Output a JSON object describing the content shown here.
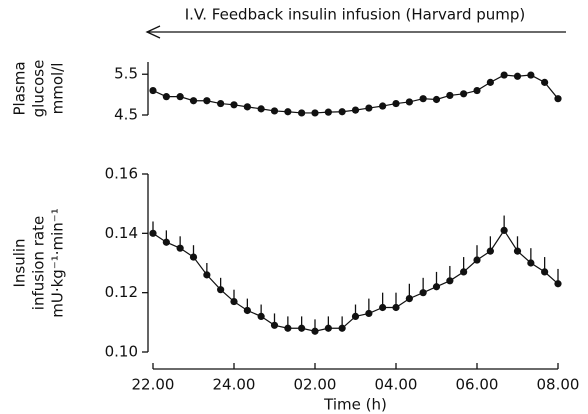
{
  "chart_data": [
    {
      "type": "line",
      "annotation": "I.V. Feedback insulin infusion (Harvard pump)",
      "ylabel": [
        "Plasma",
        "glucose",
        "mmol/l"
      ],
      "x": [
        22,
        22.33,
        22.67,
        23,
        23.33,
        23.67,
        24,
        24.33,
        24.67,
        25,
        25.33,
        25.67,
        26,
        26.33,
        26.67,
        27,
        27.33,
        27.67,
        28,
        28.33,
        28.67,
        29,
        29.33,
        29.67,
        30,
        30.33,
        30.67,
        31,
        31.33,
        31.67,
        32
      ],
      "series": [
        {
          "name": "Plasma glucose",
          "color": "#111111",
          "values": [
            5.1,
            4.95,
            4.95,
            4.85,
            4.85,
            4.78,
            4.75,
            4.7,
            4.65,
            4.6,
            4.58,
            4.55,
            4.55,
            4.57,
            4.58,
            4.62,
            4.67,
            4.72,
            4.78,
            4.82,
            4.9,
            4.88,
            4.98,
            5.02,
            5.1,
            5.3,
            5.48,
            5.45,
            5.48,
            5.3,
            4.9
          ]
        }
      ],
      "xlim": [
        22,
        32
      ],
      "ylim": [
        4.5,
        5.8
      ],
      "yticks": [
        4.5,
        5.5
      ]
    },
    {
      "type": "line",
      "ylabel": [
        "Insulin",
        "infusion rate",
        "mU·kg⁻¹·min⁻¹"
      ],
      "xlabel": "Time (h)",
      "x": [
        22,
        22.33,
        22.67,
        23,
        23.33,
        23.67,
        24,
        24.33,
        24.67,
        25,
        25.33,
        25.67,
        26,
        26.33,
        26.67,
        27,
        27.33,
        27.67,
        28,
        28.33,
        28.67,
        29,
        29.33,
        29.67,
        30,
        30.33,
        30.67,
        31,
        31.33,
        31.67,
        32
      ],
      "series": [
        {
          "name": "Insulin infusion rate",
          "color": "#111111",
          "values": [
            0.14,
            0.137,
            0.135,
            0.132,
            0.126,
            0.121,
            0.117,
            0.114,
            0.112,
            0.109,
            0.108,
            0.108,
            0.107,
            0.108,
            0.108,
            0.112,
            0.113,
            0.115,
            0.115,
            0.118,
            0.12,
            0.122,
            0.124,
            0.127,
            0.131,
            0.134,
            0.141,
            0.134,
            0.13,
            0.127,
            0.123
          ],
          "errors": [
            0.004,
            0.004,
            0.004,
            0.004,
            0.004,
            0.004,
            0.004,
            0.004,
            0.004,
            0.004,
            0.004,
            0.004,
            0.004,
            0.004,
            0.004,
            0.004,
            0.005,
            0.005,
            0.005,
            0.005,
            0.005,
            0.005,
            0.005,
            0.005,
            0.005,
            0.005,
            0.005,
            0.005,
            0.005,
            0.005,
            0.005
          ]
        }
      ],
      "xlim": [
        22,
        32
      ],
      "xticks": [
        {
          "value": 22,
          "label": "22.00"
        },
        {
          "value": 24,
          "label": "24.00"
        },
        {
          "value": 26,
          "label": "02.00"
        },
        {
          "value": 28,
          "label": "04.00"
        },
        {
          "value": 30,
          "label": "06.00"
        },
        {
          "value": 32,
          "label": "08.00"
        }
      ],
      "ylim": [
        0.1,
        0.16
      ],
      "yticks": [
        {
          "value": 0.1,
          "label": "0.10"
        },
        {
          "value": 0.12,
          "label": "0.12"
        },
        {
          "value": 0.14,
          "label": "0.14"
        },
        {
          "value": 0.16,
          "label": "0.16"
        }
      ]
    }
  ]
}
